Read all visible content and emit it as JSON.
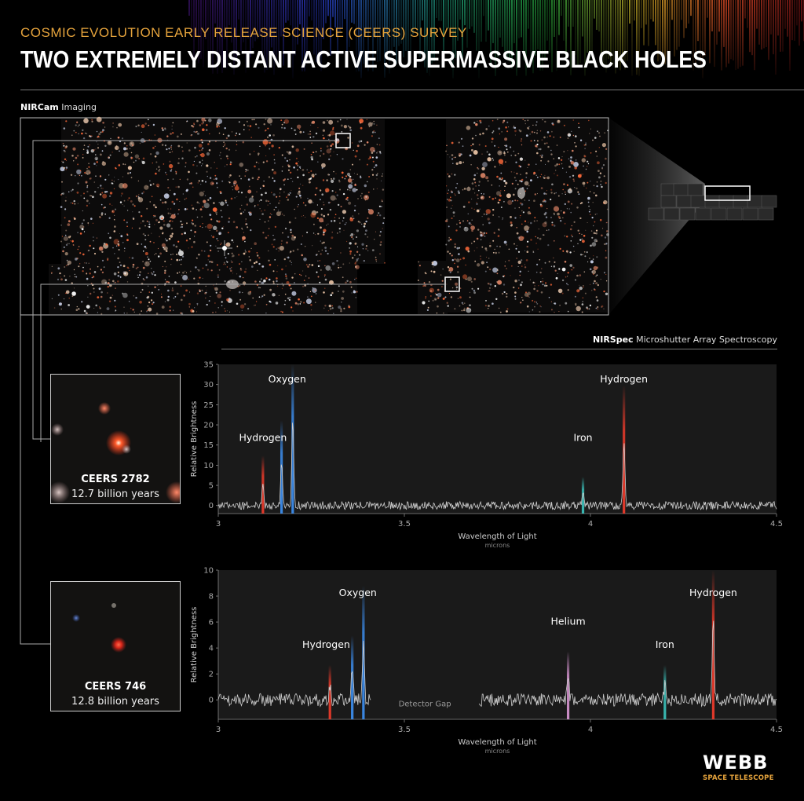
{
  "header": {
    "subtitle": "COSMIC EVOLUTION EARLY RELEASE SCIENCE (CEERS) SURVEY",
    "title": "TWO EXTREMELY DISTANT ACTIVE SUPERMASSIVE BLACK HOLES"
  },
  "nircam": {
    "name": "NIRCam",
    "label": "Imaging"
  },
  "nirspec": {
    "name": "NIRSpec",
    "label": "Microshutter Array Spectroscopy"
  },
  "thumbs": [
    {
      "name": "CEERS 2782",
      "age": "12.7 billion years"
    },
    {
      "name": "CEERS 746",
      "age": "12.8 billion years"
    }
  ],
  "logo": {
    "main": "WEBB",
    "sub": "SPACE TELESCOPE"
  },
  "colors": {
    "accent": "#e5a33c",
    "hydrogen": "#e0392a",
    "oxygen": "#3a86e0",
    "iron": "#39b6b0",
    "helium": "#c98cc4",
    "trace": "#cfcfcf",
    "panel": "#1a1a1a"
  },
  "chart_data": [
    {
      "type": "line",
      "title": "CEERS 2782",
      "xlabel": "Wavelength of Light",
      "xunit": "microns",
      "ylabel": "Relative Brightness",
      "xlim": [
        3,
        4.5
      ],
      "ylim": [
        -2,
        35
      ],
      "xticks": [
        3,
        3.5,
        4,
        4.5
      ],
      "xtick_labels": [
        "3",
        "3.5",
        "4",
        "4.5"
      ],
      "yticks": [
        0,
        5,
        10,
        15,
        20,
        25,
        30,
        35
      ],
      "noise_amplitude": 1.0,
      "gap": null,
      "lines": [
        {
          "element": "Hydrogen",
          "x": 3.12,
          "peak": 6,
          "color": "#e0392a"
        },
        {
          "element": "Oxygen",
          "x": 3.17,
          "peak": 11,
          "color": "#3a86e0"
        },
        {
          "element": "Oxygen",
          "x": 3.2,
          "peak": 22,
          "color": "#3a86e0"
        },
        {
          "element": "Iron",
          "x": 3.98,
          "peak": 3,
          "color": "#39b6b0"
        },
        {
          "element": "Hydrogen",
          "x": 4.09,
          "peak": 16,
          "color": "#e0392a"
        }
      ],
      "annotations": [
        {
          "text": "Hydrogen",
          "x": 3.12,
          "y": 16
        },
        {
          "text": "Oxygen",
          "x": 3.185,
          "y": 30.5
        },
        {
          "text": "Iron",
          "x": 3.98,
          "y": 16
        },
        {
          "text": "Hydrogen",
          "x": 4.09,
          "y": 30.5
        }
      ]
    },
    {
      "type": "line",
      "title": "CEERS 746",
      "xlabel": "Wavelength of Light",
      "xunit": "microns",
      "ylabel": "Relative Brightness",
      "xlim": [
        3,
        4.5
      ],
      "ylim": [
        -1.5,
        10
      ],
      "xticks": [
        3,
        3.5,
        4,
        4.5
      ],
      "xtick_labels": [
        "3",
        "3.5",
        "4",
        "4.5"
      ],
      "yticks": [
        0,
        2,
        4,
        6,
        8,
        10
      ],
      "noise_amplitude": 0.5,
      "gap": {
        "from": 3.41,
        "to": 3.7,
        "label": "Detector Gap"
      },
      "lines": [
        {
          "element": "Hydrogen",
          "x": 3.3,
          "peak": 1.2,
          "color": "#e0392a"
        },
        {
          "element": "Oxygen",
          "x": 3.36,
          "peak": 2.5,
          "color": "#3a86e0"
        },
        {
          "element": "Oxygen",
          "x": 3.39,
          "peak": 4.7,
          "color": "#3a86e0"
        },
        {
          "element": "Helium",
          "x": 3.94,
          "peak": 1.8,
          "color": "#c98cc4"
        },
        {
          "element": "Iron",
          "x": 4.2,
          "peak": 1.2,
          "color": "#39b6b0"
        },
        {
          "element": "Hydrogen",
          "x": 4.33,
          "peak": 6.1,
          "color": "#e0392a"
        }
      ],
      "annotations": [
        {
          "text": "Hydrogen",
          "x": 3.29,
          "y": 4
        },
        {
          "text": "Oxygen",
          "x": 3.375,
          "y": 8
        },
        {
          "text": "Helium",
          "x": 3.94,
          "y": 5.8
        },
        {
          "text": "Iron",
          "x": 4.2,
          "y": 4
        },
        {
          "text": "Hydrogen",
          "x": 4.33,
          "y": 8
        }
      ]
    }
  ]
}
